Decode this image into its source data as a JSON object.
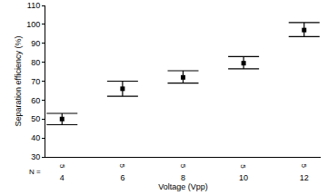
{
  "chart_data": {
    "type": "scatter",
    "x_label": "Voltage (Vpp)",
    "y_label": "Separation efficiency (%)",
    "categories": [
      "4",
      "6",
      "8",
      "10",
      "12"
    ],
    "values": [
      50,
      66,
      72,
      79.5,
      97
    ],
    "error_lower": [
      47,
      62,
      69,
      76.5,
      93.5
    ],
    "error_upper": [
      53,
      70,
      75.5,
      83,
      101
    ],
    "n_label": "N =",
    "n": [
      5,
      5,
      5,
      5,
      5
    ],
    "color": "#000000",
    "marker": "square",
    "ylim": [
      30,
      110
    ],
    "yticks": [
      30,
      40,
      50,
      60,
      70,
      80,
      90,
      100,
      110
    ],
    "grid": false
  }
}
